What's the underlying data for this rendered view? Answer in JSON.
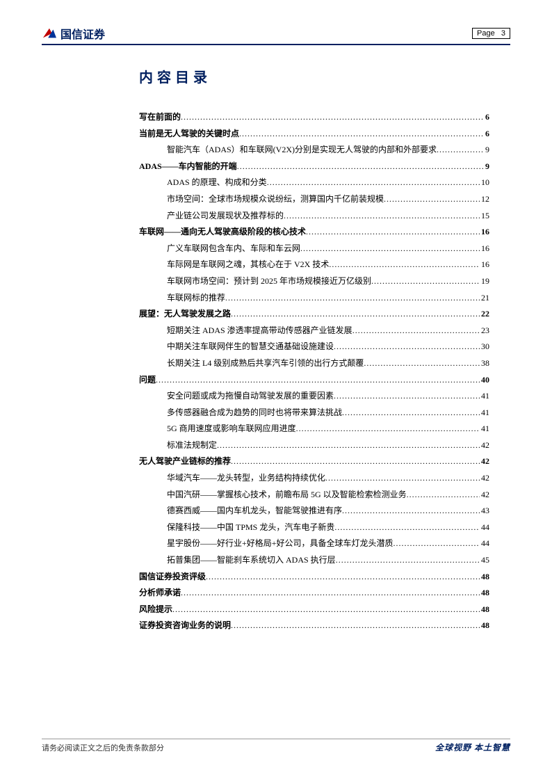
{
  "header": {
    "company_name": "国信证券",
    "page_label": "Page",
    "page_number": "3"
  },
  "toc": {
    "title": "内容目录",
    "entries": [
      {
        "level": 1,
        "label": "写在前面的",
        "page": "6"
      },
      {
        "level": 1,
        "label": "当前是无人驾驶的关键时点",
        "page": "6"
      },
      {
        "level": 2,
        "label": "智能汽车（ADAS）和车联网(V2X)分别是实现无人驾驶的内部和外部要求",
        "page": "9"
      },
      {
        "level": 1,
        "label": "ADAS——车内智能的开端",
        "page": "9"
      },
      {
        "level": 2,
        "label": "ADAS 的原理、构成和分类",
        "page": "10"
      },
      {
        "level": 2,
        "label": "市场空间：全球市场规模众说纷纭，测算国内千亿前装规模",
        "page": "12"
      },
      {
        "level": 2,
        "label": "产业链公司发展现状及推荐标的",
        "page": "15"
      },
      {
        "level": 1,
        "label": "车联网——通向无人驾驶高级阶段的核心技术",
        "page": "16"
      },
      {
        "level": 2,
        "label": "广义车联网包含车内、车际和车云网",
        "page": "16"
      },
      {
        "level": 2,
        "label": "车际网是车联网之魂，其核心在于 V2X 技术",
        "page": "16"
      },
      {
        "level": 2,
        "label": "车联网市场空间：预计到 2025 年市场规模接近万亿级别",
        "page": "19"
      },
      {
        "level": 2,
        "label": "车联网标的推荐",
        "page": "21"
      },
      {
        "level": 1,
        "label": "展望：无人驾驶发展之路",
        "page": "22"
      },
      {
        "level": 2,
        "label": "短期关注 ADAS 渗透率提高带动传感器产业链发展",
        "page": "23"
      },
      {
        "level": 2,
        "label": "中期关注车联网伴生的智慧交通基础设施建设",
        "page": "30"
      },
      {
        "level": 2,
        "label": "长期关注 L4 级别成熟后共享汽车引领的出行方式颠覆",
        "page": "38"
      },
      {
        "level": 1,
        "label": "问题",
        "page": "40"
      },
      {
        "level": 2,
        "label": "安全问题或成为拖慢自动驾驶发展的重要因素",
        "page": "41"
      },
      {
        "level": 2,
        "label": "多传感器融合成为趋势的同时也将带来算法挑战",
        "page": "41"
      },
      {
        "level": 2,
        "label": "5G 商用速度或影响车联网应用进度",
        "page": "41"
      },
      {
        "level": 2,
        "label": "标准法规制定",
        "page": "42"
      },
      {
        "level": 1,
        "label": "无人驾驶产业链标的推荐",
        "page": "42"
      },
      {
        "level": 2,
        "label": "华域汽车——龙头转型，业务结构持续优化",
        "page": "42"
      },
      {
        "level": 2,
        "label": "中国汽研——掌握核心技术，前瞻布局 5G 以及智能检索检测业务",
        "page": "42"
      },
      {
        "level": 2,
        "label": "德赛西威——国内车机龙头，智能驾驶推进有序",
        "page": "43"
      },
      {
        "level": 2,
        "label": "保隆科技——中国 TPMS 龙头，汽车电子新贵",
        "page": "44"
      },
      {
        "level": 2,
        "label": "星宇股份——好行业+好格局+好公司，具备全球车灯龙头潜质",
        "page": "44"
      },
      {
        "level": 2,
        "label": "拓普集团——智能刹车系统切入 ADAS 执行层",
        "page": "45"
      },
      {
        "level": 1,
        "label": "国信证券投资评级",
        "page": "48"
      },
      {
        "level": 1,
        "label": "分析师承诺",
        "page": "48"
      },
      {
        "level": 1,
        "label": "风险提示",
        "page": "48"
      },
      {
        "level": 1,
        "label": "证券投资咨询业务的说明",
        "page": "48"
      }
    ]
  },
  "footer": {
    "left_text": "请务必阅读正文之后的免责条款部分",
    "right_text": "全球视野  本土智慧"
  },
  "colors": {
    "brand_dark": "#002060",
    "logo_red": "#c00000",
    "logo_blue": "#003399",
    "text": "#000000",
    "footer_border": "#999999"
  }
}
